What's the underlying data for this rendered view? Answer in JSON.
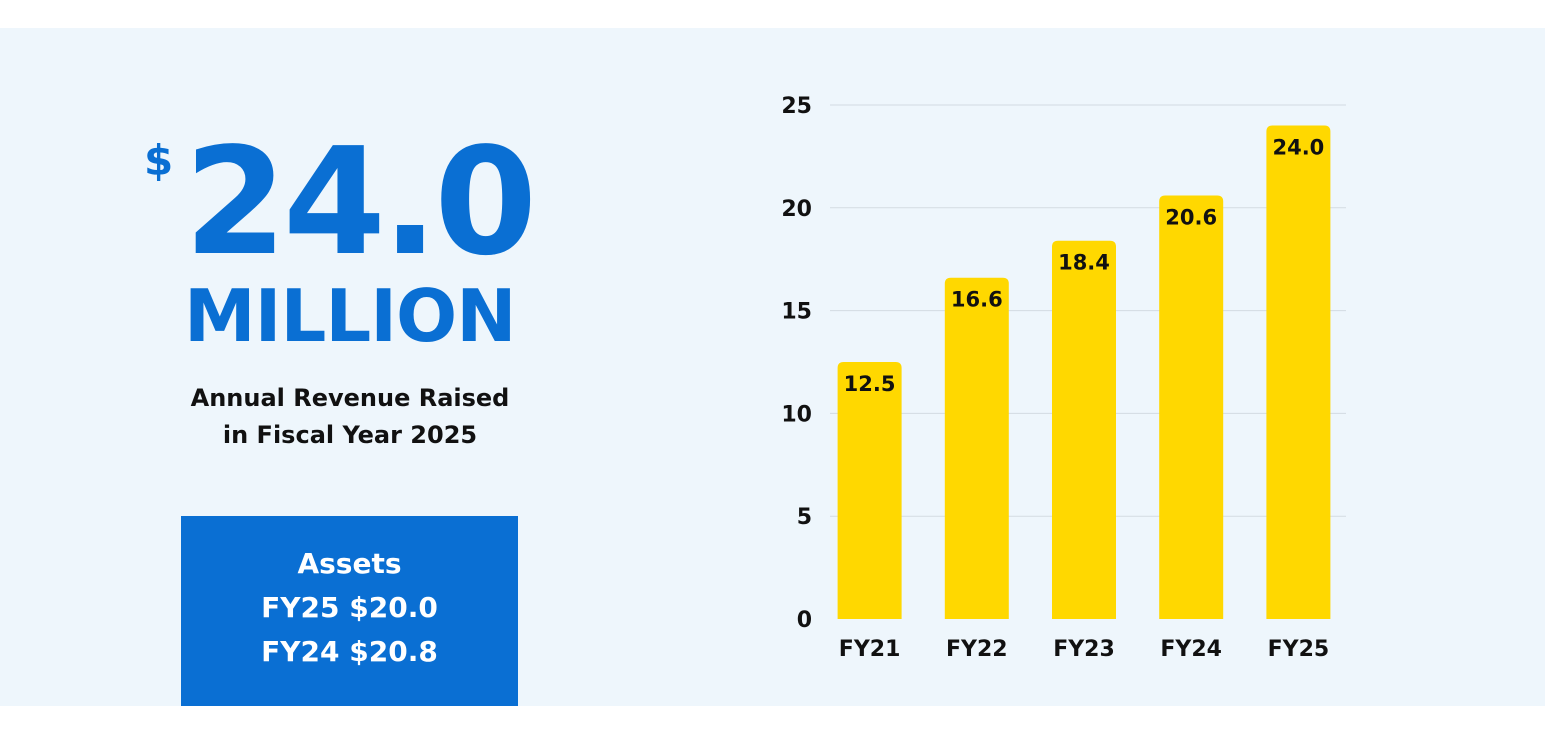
{
  "headline": {
    "currency": "$",
    "amount": "24.0",
    "unit": "MILLION",
    "caption_line1": "Annual Revenue Raised",
    "caption_line2": "in Fiscal Year 2025"
  },
  "assets": {
    "title": "Assets",
    "line1": "FY25 $20.0",
    "line2": "FY24 $20.8"
  },
  "colors": {
    "accent_blue": "#0a6fd3",
    "bar_yellow": "#ffd800",
    "panel_bg": "#eef6fc"
  },
  "chart_data": {
    "type": "bar",
    "categories": [
      "FY21",
      "FY22",
      "FY23",
      "FY24",
      "FY25"
    ],
    "values": [
      12.5,
      16.6,
      18.4,
      20.6,
      24.0
    ],
    "value_labels": [
      "12.5",
      "16.6",
      "18.4",
      "20.6",
      "24.0"
    ],
    "yticks": [
      0,
      5,
      10,
      15,
      20,
      25
    ],
    "ylim": [
      0,
      25
    ],
    "grid": true,
    "legend": "none"
  }
}
